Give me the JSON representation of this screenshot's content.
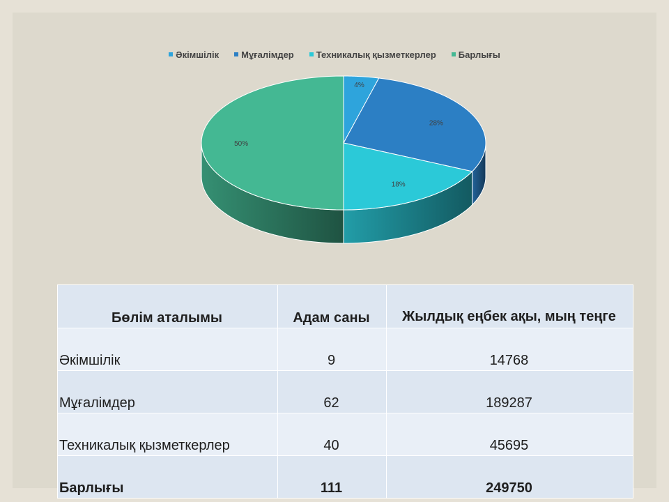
{
  "chart_data": {
    "type": "pie",
    "categories": [
      "Әкімшілік",
      "Мұғалімдер",
      "Техникалық қызметкерлер",
      "Барлығы"
    ],
    "values": [
      4,
      28,
      18,
      50
    ],
    "data_labels": [
      "4%",
      "28%",
      "18%",
      "50%"
    ],
    "legend_position": "top",
    "three_d": true,
    "colors": [
      "#2ea4dc",
      "#2c7fc4",
      "#2bc9d8",
      "#44b893"
    ]
  },
  "table": {
    "headers": [
      "Бөлім аталымы",
      "Адам саны",
      "Жылдық еңбек ақы, мың теңге"
    ],
    "rows": [
      [
        "Әкімшілік",
        "9",
        "14768"
      ],
      [
        "Мұғалімдер",
        "62",
        "189287"
      ],
      [
        "Техникалық қызметкерлер",
        "40",
        "45695"
      ],
      [
        "Барлығы",
        "111",
        "249750"
      ]
    ]
  }
}
